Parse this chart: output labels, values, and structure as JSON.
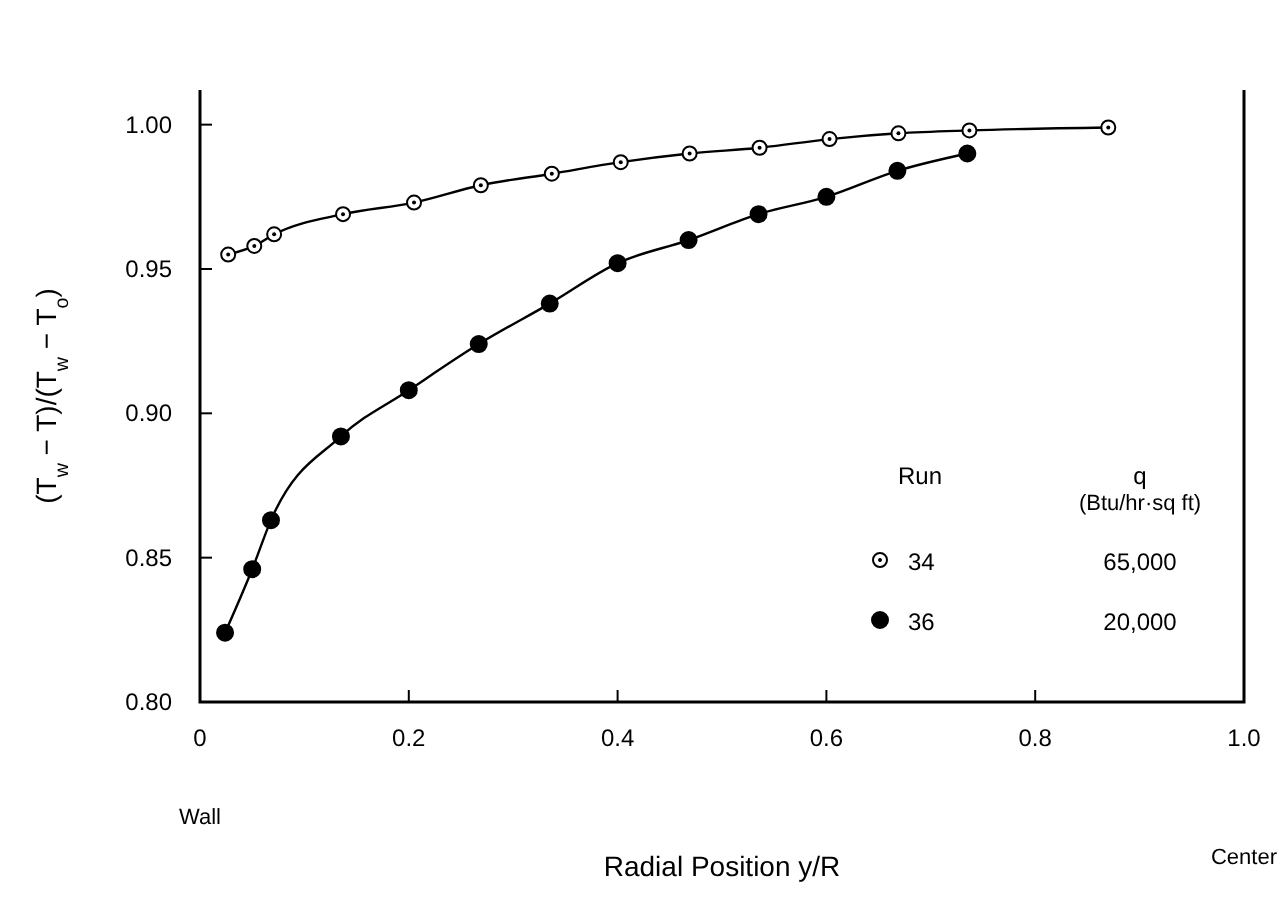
{
  "chart_data": {
    "type": "line",
    "xlabel": "Radial Position y/R",
    "ylabel": "(T$_{w}$ − T)/(T$_{w}$ − T$_{o}$)",
    "legend_title": "Run",
    "legend": "right",
    "marker": "circle",
    "line_style": "solid",
    "grid": false,
    "xlim": [
      0,
      1
    ],
    "ylim": [
      0.8,
      1.012
    ],
    "xticks": [
      0,
      0.2,
      0.4,
      0.6,
      0.8,
      {
        "value": 1,
        "label": "1.0"
      }
    ],
    "yticks": [
      {
        "value": 0.8,
        "label": "0.80"
      },
      {
        "value": 0.85,
        "label": "0.85"
      },
      {
        "value": 0.9,
        "label": "0.90"
      },
      {
        "value": 0.95,
        "label": "0.95"
      },
      {
        "value": 1,
        "label": "1.00"
      }
    ],
    "annotations": [
      "Wall",
      "Center",
      "q",
      "(Btu/hr·sq ft)",
      "65,000",
      "20,000"
    ],
    "series": [
      {
        "name": "34",
        "color": "#000000",
        "x": [
          0.027,
          0.052,
          0.071,
          0.137,
          0.205,
          0.269,
          0.337,
          0.403,
          0.469,
          0.536,
          0.603,
          0.669,
          0.737,
          0.87
        ],
        "values": [
          0.955,
          0.958,
          0.962,
          0.969,
          0.973,
          0.979,
          0.983,
          0.987,
          0.99,
          0.992,
          0.995,
          0.997,
          0.998,
          0.999
        ]
      },
      {
        "name": "36",
        "color": "#000000",
        "x": [
          0.024,
          0.05,
          0.068,
          0.135,
          0.2,
          0.267,
          0.335,
          0.4,
          0.468,
          0.535,
          0.6,
          0.668,
          0.735
        ],
        "values": [
          0.824,
          0.846,
          0.863,
          0.892,
          0.908,
          0.924,
          0.938,
          0.952,
          0.96,
          0.969,
          0.975,
          0.984,
          0.99
        ]
      }
    ]
  }
}
